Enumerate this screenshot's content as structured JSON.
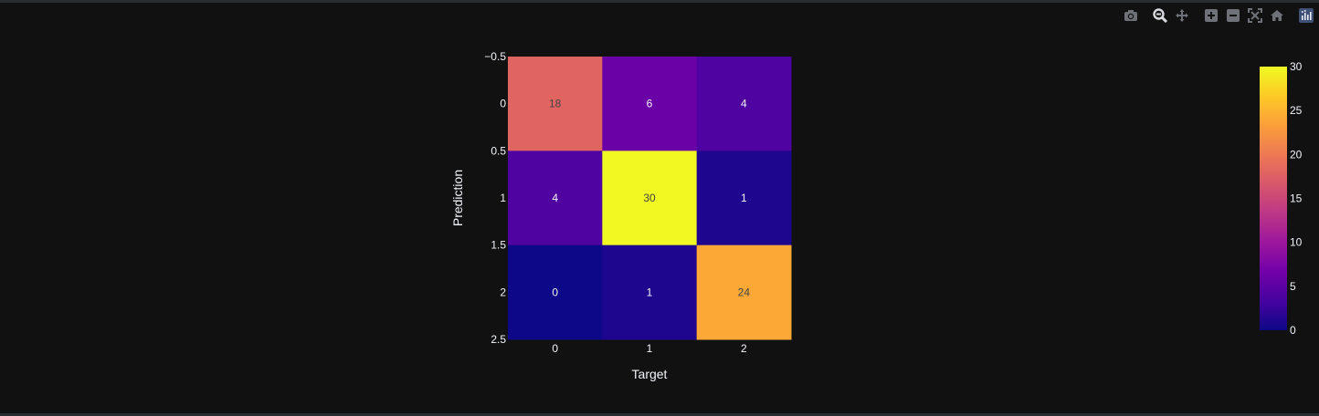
{
  "modebar": {
    "icons": [
      "camera-icon",
      "zoom-icon",
      "pan-icon",
      "zoom-in-icon",
      "zoom-out-icon",
      "autoscale-icon",
      "home-icon",
      "plotly-logo-icon"
    ]
  },
  "chart_data": {
    "type": "heatmap",
    "title": "",
    "xlabel": "Target",
    "ylabel": "Prediction",
    "x_ticks": [
      "0",
      "1",
      "2"
    ],
    "y_ticks": [
      "−0.5",
      "0",
      "0.5",
      "1",
      "1.5",
      "2",
      "2.5"
    ],
    "z": [
      [
        18,
        6,
        4
      ],
      [
        4,
        30,
        1
      ],
      [
        0,
        1,
        24
      ]
    ],
    "colorscale": "Plasma",
    "zmin": 0,
    "zmax": 30,
    "colorbar_ticks": [
      "0",
      "5",
      "10",
      "15",
      "20",
      "25",
      "30"
    ],
    "colors": {
      "background": "#111111",
      "text": "#f2f5fa",
      "dark_text": "#444444"
    }
  }
}
